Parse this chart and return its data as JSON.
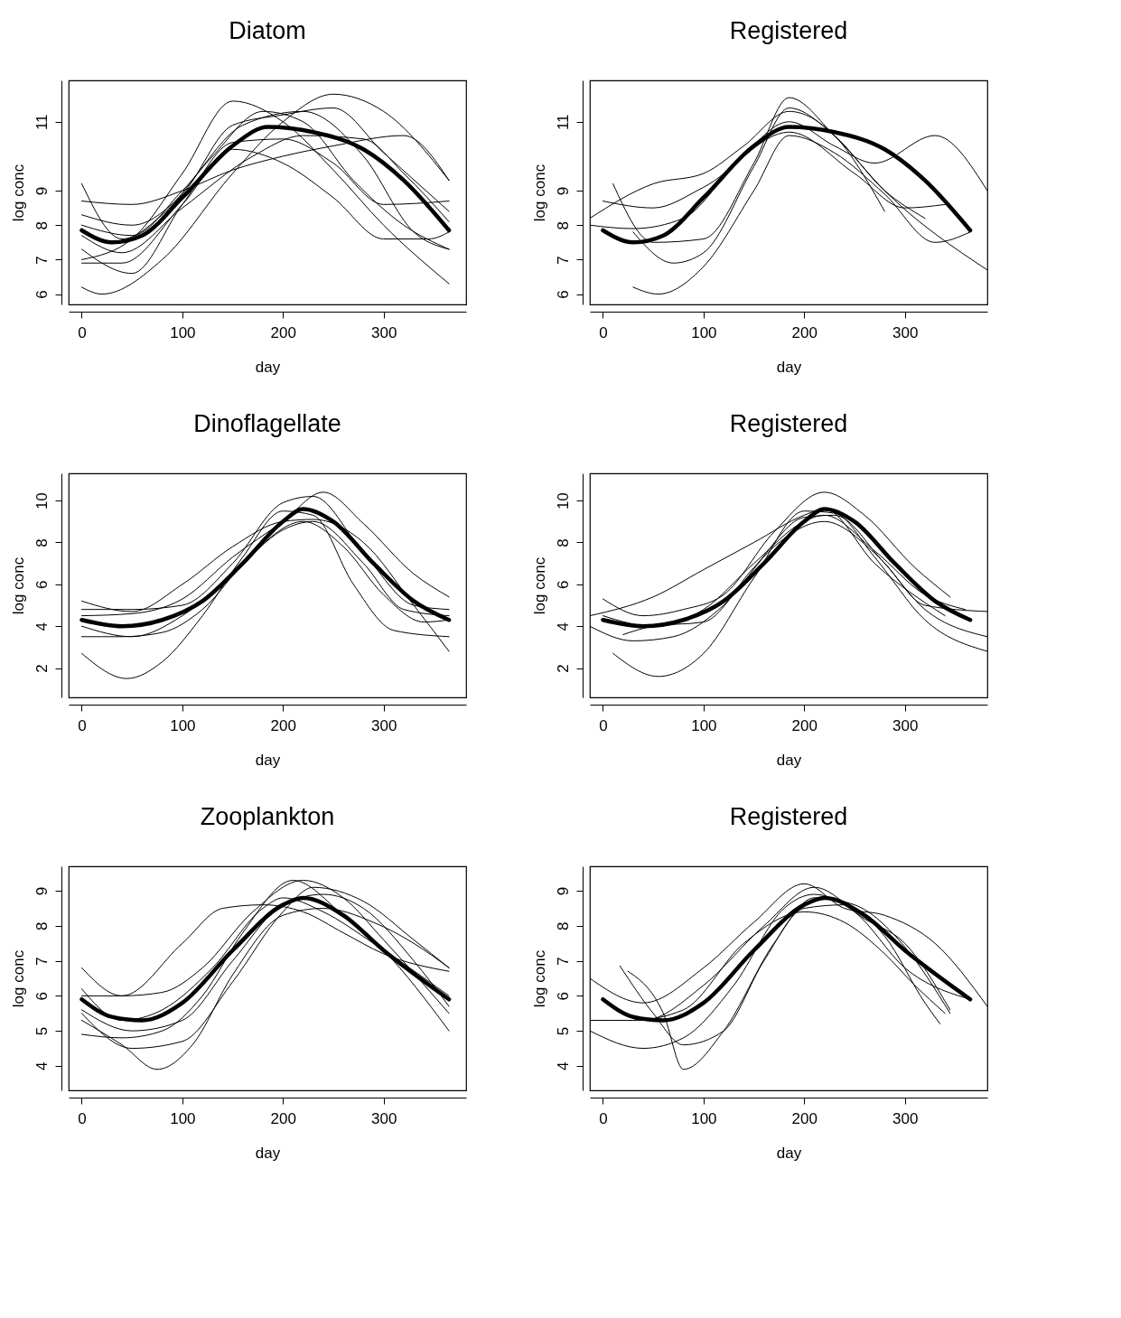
{
  "chart_data": [
    {
      "type": "line",
      "title": "Diatom",
      "xlabel": "day",
      "ylabel": "log conc",
      "xlim": [
        -13,
        382
      ],
      "xticks": [
        0,
        100,
        200,
        300
      ],
      "ylim": [
        5.7,
        12.2
      ],
      "yticks": [
        6,
        7,
        8,
        9,
        11
      ],
      "grid": false,
      "legend": false,
      "series": [
        {
          "color": "#000000",
          "x": [
            0,
            30,
            60,
            100,
            150,
            185,
            230,
            280,
            320,
            365
          ],
          "values": [
            7.85,
            7.5,
            7.7,
            8.8,
            10.3,
            10.85,
            10.7,
            10.2,
            9.3,
            7.85
          ]
        },
        {
          "color": "#000000",
          "x": [
            0,
            50,
            100,
            150,
            200,
            250,
            300,
            365
          ],
          "values": [
            7.0,
            7.6,
            9.5,
            11.6,
            11.0,
            9.6,
            8.0,
            6.3
          ]
        },
        {
          "color": "#000000",
          "x": [
            0,
            20,
            80,
            150,
            200,
            250,
            300,
            365
          ],
          "values": [
            6.2,
            6.0,
            7.0,
            9.5,
            11.0,
            11.8,
            11.3,
            9.3
          ]
        },
        {
          "color": "#000000",
          "x": [
            0,
            50,
            100,
            150,
            200,
            250,
            320,
            365
          ],
          "values": [
            8.7,
            8.6,
            9.0,
            9.6,
            10.0,
            10.3,
            10.6,
            9.3
          ]
        },
        {
          "color": "#000000",
          "x": [
            0,
            40,
            80,
            130,
            180,
            220,
            270,
            320,
            365
          ],
          "values": [
            9.2,
            7.6,
            8.3,
            10.0,
            11.3,
            11.0,
            9.3,
            8.0,
            7.3
          ]
        },
        {
          "color": "#000000",
          "x": [
            0,
            50,
            100,
            160,
            220,
            280,
            330,
            365
          ],
          "values": [
            8.0,
            7.7,
            9.0,
            10.9,
            11.3,
            10.0,
            7.8,
            7.3
          ]
        },
        {
          "color": "#000000",
          "x": [
            0,
            50,
            100,
            150,
            200,
            250,
            300,
            365
          ],
          "values": [
            7.3,
            6.6,
            8.6,
            10.4,
            10.5,
            9.8,
            8.6,
            8.7
          ]
        },
        {
          "color": "#000000",
          "x": [
            0,
            40,
            100,
            170,
            220,
            280,
            320,
            365
          ],
          "values": [
            7.7,
            7.2,
            8.5,
            10.0,
            10.6,
            10.5,
            9.5,
            8.1
          ]
        },
        {
          "color": "#000000",
          "x": [
            0,
            40,
            100,
            150,
            200,
            250,
            300,
            345,
            365
          ],
          "values": [
            6.9,
            6.9,
            8.6,
            10.2,
            9.8,
            8.8,
            7.6,
            7.6,
            7.8
          ]
        },
        {
          "color": "#000000",
          "x": [
            0,
            50,
            100,
            150,
            200,
            250,
            300,
            365
          ],
          "values": [
            8.3,
            8.0,
            8.9,
            10.9,
            11.2,
            11.4,
            10.1,
            8.4
          ]
        }
      ]
    },
    {
      "type": "line",
      "title": "Registered",
      "xlabel": "day",
      "ylabel": "log conc",
      "xlim": [
        -13,
        382
      ],
      "xticks": [
        0,
        100,
        200,
        300
      ],
      "ylim": [
        5.7,
        12.2
      ],
      "yticks": [
        6,
        7,
        8,
        9,
        11
      ],
      "grid": false,
      "legend": false,
      "series": [
        {
          "color": "#000000",
          "x": [
            0,
            30,
            60,
            100,
            150,
            185,
            230,
            280,
            320,
            365
          ],
          "values": [
            7.85,
            7.5,
            7.7,
            8.8,
            10.3,
            10.85,
            10.7,
            10.2,
            9.3,
            7.85
          ]
        },
        {
          "color": "#000000",
          "x": [
            10,
            50,
            100,
            150,
            185,
            230,
            280,
            382
          ],
          "values": [
            9.2,
            7.5,
            7.6,
            9.8,
            11.7,
            10.6,
            9.0,
            6.7
          ]
        },
        {
          "color": "#000000",
          "x": [
            30,
            55,
            100,
            150,
            185,
            230,
            280,
            330,
            365
          ],
          "values": [
            6.2,
            6.0,
            6.8,
            9.0,
            10.6,
            10.1,
            8.9,
            7.5,
            7.8
          ]
        },
        {
          "color": "#000000",
          "x": [
            -13,
            50,
            100,
            140,
            185,
            230,
            280
          ],
          "values": [
            8.2,
            9.2,
            9.5,
            10.3,
            11.3,
            10.6,
            8.4
          ]
        },
        {
          "color": "#000000",
          "x": [
            -13,
            30,
            80,
            130,
            185,
            230,
            270,
            330,
            382
          ],
          "values": [
            8.0,
            7.9,
            8.2,
            9.7,
            11.0,
            10.3,
            9.8,
            10.6,
            9.0
          ]
        },
        {
          "color": "#000000",
          "x": [
            0,
            50,
            100,
            185,
            250,
            300,
            340
          ],
          "values": [
            8.7,
            8.5,
            9.1,
            10.7,
            9.5,
            8.5,
            8.6
          ]
        },
        {
          "color": "#000000",
          "x": [
            30,
            70,
            100,
            150,
            185,
            230,
            280,
            320
          ],
          "values": [
            7.8,
            6.9,
            7.2,
            9.7,
            11.4,
            10.6,
            9.0,
            8.2
          ]
        }
      ]
    },
    {
      "type": "line",
      "title": "Dinoflagellate",
      "xlabel": "day",
      "ylabel": "log conc",
      "xlim": [
        -13,
        382
      ],
      "xticks": [
        0,
        100,
        200,
        300
      ],
      "ylim": [
        0.6,
        11.3
      ],
      "yticks": [
        2,
        4,
        6,
        8,
        10
      ],
      "grid": false,
      "legend": false,
      "series": [
        {
          "color": "#000000",
          "x": [
            0,
            40,
            80,
            120,
            160,
            200,
            220,
            250,
            290,
            330,
            365
          ],
          "values": [
            4.3,
            4.0,
            4.3,
            5.2,
            7.0,
            9.0,
            9.6,
            9.0,
            7.0,
            5.2,
            4.3
          ]
        },
        {
          "color": "#000000",
          "x": [
            0,
            45,
            80,
            120,
            160,
            200,
            230,
            270,
            310,
            365
          ],
          "values": [
            2.7,
            1.5,
            2.3,
            4.5,
            7.3,
            9.5,
            9.3,
            6.0,
            3.8,
            3.5
          ]
        },
        {
          "color": "#000000",
          "x": [
            0,
            50,
            100,
            150,
            200,
            230,
            280,
            330,
            365
          ],
          "values": [
            5.2,
            4.7,
            6.0,
            7.8,
            9.0,
            9.1,
            8.0,
            5.0,
            2.8
          ]
        },
        {
          "color": "#000000",
          "x": [
            0,
            50,
            100,
            150,
            200,
            230,
            280,
            330,
            365
          ],
          "values": [
            4.8,
            4.8,
            5.0,
            7.0,
            9.9,
            10.2,
            7.5,
            5.0,
            4.8
          ]
        },
        {
          "color": "#000000",
          "x": [
            0,
            50,
            100,
            150,
            200,
            230,
            280,
            320,
            365
          ],
          "values": [
            4.0,
            3.5,
            4.5,
            6.5,
            8.6,
            9.0,
            7.0,
            4.8,
            4.5
          ]
        },
        {
          "color": "#000000",
          "x": [
            0,
            40,
            80,
            120,
            170,
            220,
            260,
            300,
            340,
            365
          ],
          "values": [
            3.5,
            3.5,
            3.7,
            4.8,
            7.5,
            9.0,
            7.8,
            5.5,
            4.2,
            4.3
          ]
        },
        {
          "color": "#000000",
          "x": [
            0,
            50,
            100,
            150,
            200,
            240,
            280,
            330,
            365
          ],
          "values": [
            4.5,
            4.6,
            5.3,
            7.3,
            9.0,
            10.4,
            8.9,
            6.5,
            5.4
          ]
        }
      ]
    },
    {
      "type": "line",
      "title": "Registered",
      "xlabel": "day",
      "ylabel": "log conc",
      "xlim": [
        -13,
        382
      ],
      "xticks": [
        0,
        100,
        200,
        300
      ],
      "ylim": [
        0.6,
        11.3
      ],
      "yticks": [
        2,
        4,
        6,
        8,
        10
      ],
      "grid": false,
      "legend": false,
      "series": [
        {
          "color": "#000000",
          "x": [
            0,
            40,
            80,
            120,
            160,
            200,
            220,
            250,
            290,
            330,
            365
          ],
          "values": [
            4.3,
            4.0,
            4.3,
            5.2,
            7.0,
            9.0,
            9.6,
            9.0,
            7.0,
            5.2,
            4.3
          ]
        },
        {
          "color": "#000000",
          "x": [
            10,
            55,
            100,
            150,
            200,
            230,
            270,
            320,
            382
          ],
          "values": [
            2.7,
            1.6,
            2.7,
            6.3,
            9.5,
            9.4,
            7.3,
            4.3,
            2.8
          ]
        },
        {
          "color": "#000000",
          "x": [
            -13,
            30,
            70,
            120,
            170,
            220,
            270,
            320,
            382
          ],
          "values": [
            4.0,
            3.3,
            3.5,
            5.0,
            7.8,
            9.0,
            7.5,
            4.8,
            3.5
          ]
        },
        {
          "color": "#000000",
          "x": [
            -13,
            50,
            100,
            150,
            200,
            220,
            270,
            340
          ],
          "values": [
            4.5,
            5.4,
            6.7,
            8.0,
            9.3,
            9.6,
            7.0,
            4.5
          ]
        },
        {
          "color": "#000000",
          "x": [
            0,
            40,
            80,
            120,
            170,
            220,
            260,
            310,
            345
          ],
          "values": [
            5.3,
            4.5,
            4.8,
            5.5,
            8.5,
            10.4,
            9.3,
            6.8,
            5.4
          ]
        },
        {
          "color": "#000000",
          "x": [
            0,
            50,
            100,
            150,
            200,
            220,
            270,
            320,
            360
          ],
          "values": [
            4.5,
            4.0,
            4.8,
            7.0,
            9.0,
            9.3,
            7.6,
            5.5,
            4.8
          ]
        },
        {
          "color": "#000000",
          "x": [
            20,
            50,
            100,
            150,
            200,
            230,
            280,
            320,
            382
          ],
          "values": [
            3.6,
            4.0,
            4.2,
            6.8,
            9.2,
            9.3,
            7.0,
            5.0,
            4.7
          ]
        }
      ]
    },
    {
      "type": "line",
      "title": "Zooplankton",
      "xlabel": "day",
      "ylabel": "log conc",
      "xlim": [
        -13,
        382
      ],
      "xticks": [
        0,
        100,
        200,
        300
      ],
      "ylim": [
        3.3,
        9.7
      ],
      "yticks": [
        4,
        5,
        6,
        7,
        8,
        9
      ],
      "grid": false,
      "legend": false,
      "series": [
        {
          "color": "#000000",
          "x": [
            0,
            30,
            60,
            100,
            150,
            200,
            220,
            260,
            300,
            365
          ],
          "values": [
            5.9,
            5.4,
            5.3,
            5.8,
            7.3,
            8.6,
            8.8,
            8.3,
            7.3,
            5.9
          ]
        },
        {
          "color": "#000000",
          "x": [
            0,
            40,
            75,
            110,
            150,
            200,
            240,
            290,
            330,
            365
          ],
          "values": [
            5.3,
            4.6,
            3.9,
            4.6,
            6.6,
            8.3,
            8.5,
            8.1,
            7.5,
            6.8
          ]
        },
        {
          "color": "#000000",
          "x": [
            0,
            40,
            80,
            120,
            170,
            220,
            260,
            300,
            365
          ],
          "values": [
            6.8,
            6.0,
            6.1,
            6.8,
            8.4,
            9.3,
            8.8,
            7.6,
            5.5
          ]
        },
        {
          "color": "#000000",
          "x": [
            0,
            40,
            100,
            140,
            180,
            220,
            260,
            300,
            365
          ],
          "values": [
            6.0,
            6.0,
            7.5,
            8.5,
            8.6,
            8.4,
            7.8,
            7.2,
            6.7
          ]
        },
        {
          "color": "#000000",
          "x": [
            0,
            40,
            80,
            120,
            160,
            210,
            260,
            300,
            365
          ],
          "values": [
            4.9,
            4.8,
            5.0,
            6.0,
            7.8,
            9.3,
            8.3,
            7.3,
            5.0
          ]
        },
        {
          "color": "#000000",
          "x": [
            0,
            50,
            100,
            150,
            200,
            240,
            280,
            330,
            365
          ],
          "values": [
            5.6,
            5.0,
            5.3,
            7.0,
            8.6,
            8.9,
            8.5,
            7.0,
            5.7
          ]
        },
        {
          "color": "#000000",
          "x": [
            0,
            50,
            100,
            150,
            200,
            230,
            280,
            330,
            365
          ],
          "values": [
            5.5,
            4.5,
            4.7,
            6.4,
            8.4,
            9.1,
            8.7,
            7.6,
            6.8
          ]
        },
        {
          "color": "#000000",
          "x": [
            0,
            40,
            80,
            130,
            180,
            200,
            240,
            290,
            365
          ],
          "values": [
            6.2,
            5.3,
            5.6,
            6.8,
            8.5,
            8.8,
            8.4,
            7.5,
            6.0
          ]
        }
      ]
    },
    {
      "type": "line",
      "title": "Registered",
      "xlabel": "day",
      "ylabel": "log conc",
      "xlim": [
        -13,
        382
      ],
      "xticks": [
        0,
        100,
        200,
        300
      ],
      "ylim": [
        3.3,
        9.7
      ],
      "yticks": [
        4,
        5,
        6,
        7,
        8,
        9
      ],
      "grid": false,
      "legend": false,
      "series": [
        {
          "color": "#000000",
          "x": [
            0,
            30,
            60,
            100,
            150,
            200,
            220,
            260,
            300,
            365
          ],
          "values": [
            5.9,
            5.4,
            5.3,
            5.8,
            7.3,
            8.6,
            8.8,
            8.3,
            7.3,
            5.9
          ]
        },
        {
          "color": "#000000",
          "x": [
            25,
            60,
            80,
            120,
            170,
            210,
            250,
            300,
            345
          ],
          "values": [
            6.7,
            5.5,
            3.9,
            5.0,
            7.5,
            8.8,
            8.6,
            7.4,
            5.5
          ]
        },
        {
          "color": "#000000",
          "x": [
            -13,
            40,
            100,
            150,
            200,
            240,
            280,
            330,
            382
          ],
          "values": [
            6.5,
            5.8,
            6.8,
            8.1,
            9.2,
            8.5,
            8.3,
            7.5,
            5.7
          ]
        },
        {
          "color": "#000000",
          "x": [
            -13,
            30,
            80,
            140,
            200,
            240,
            280,
            310,
            340
          ],
          "values": [
            5.3,
            5.3,
            5.6,
            7.5,
            8.4,
            8.1,
            7.2,
            6.3,
            5.5
          ]
        },
        {
          "color": "#000000",
          "x": [
            17,
            50,
            80,
            120,
            160,
            200,
            240,
            280,
            320,
            335
          ],
          "values": [
            6.85,
            5.5,
            4.6,
            5.0,
            7.0,
            8.5,
            8.6,
            7.7,
            5.8,
            5.2
          ]
        },
        {
          "color": "#000000",
          "x": [
            -13,
            40,
            80,
            130,
            180,
            210,
            250,
            300,
            365
          ],
          "values": [
            5.0,
            4.5,
            4.8,
            6.3,
            8.5,
            8.9,
            8.4,
            6.8,
            5.9
          ]
        },
        {
          "color": "#000000",
          "x": [
            0,
            40,
            100,
            160,
            210,
            260,
            300,
            345
          ],
          "values": [
            5.9,
            5.3,
            6.3,
            8.0,
            9.1,
            8.2,
            7.5,
            5.6
          ]
        }
      ]
    }
  ]
}
